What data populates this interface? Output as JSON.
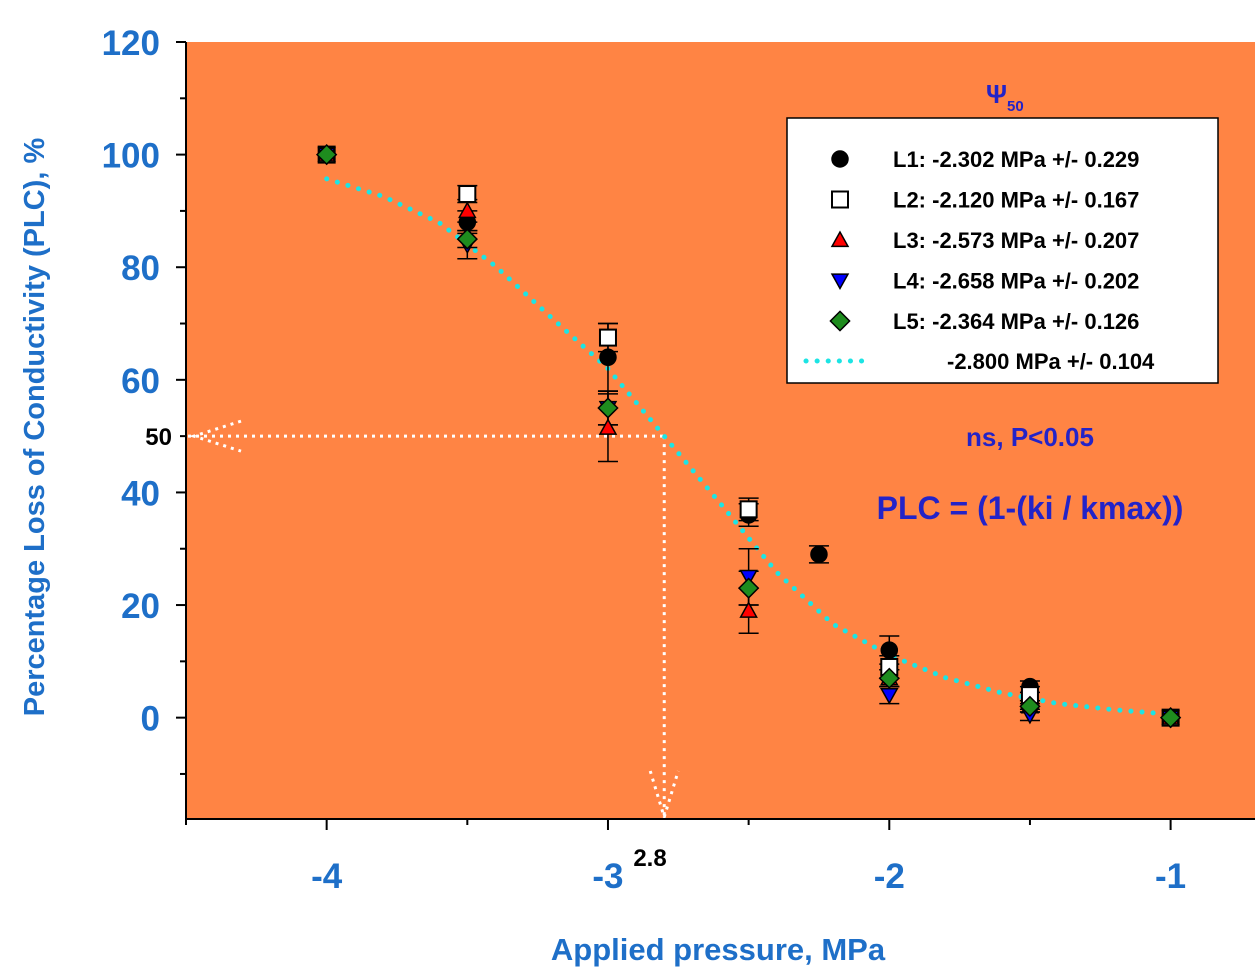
{
  "colors": {
    "plot_background": "#FF8444",
    "axis_text": "#1E6FC8",
    "annotation_text": "#2323C8",
    "fit_line": "#1CE4E4",
    "guide_line": "#FFFFFF"
  },
  "chart_data": {
    "type": "scatter",
    "title": "",
    "xlabel": "Applied pressure, MPa",
    "ylabel": "Percentage Loss of Conductivity (PLC), %",
    "xlim": [
      -4.5,
      -0.7
    ],
    "ylim": [
      -18,
      120
    ],
    "xticks": [
      -4,
      -3,
      -2,
      -1
    ],
    "xtick_labels": [
      "-4",
      "-3",
      "-2",
      "-1"
    ],
    "yticks": [
      0,
      20,
      40,
      60,
      80,
      100,
      120
    ],
    "ytick_labels": [
      "0",
      "20",
      "40",
      "60",
      "80",
      "100",
      "120"
    ],
    "grid": false,
    "legend_position": "top-right",
    "psi_symbol": "Ψ",
    "psi_subscript": "50",
    "series": [
      {
        "name": "L1: -2.302 MPa +/- 0.229",
        "marker": "circle",
        "color": "#000000",
        "points": [
          {
            "x": -4,
            "y": 100
          },
          {
            "x": -3.5,
            "y": 88,
            "err": 2
          },
          {
            "x": -3,
            "y": 64,
            "err": 6
          },
          {
            "x": -2.5,
            "y": 36,
            "err": 2
          },
          {
            "x": -2.25,
            "y": 29,
            "err": 1.5
          },
          {
            "x": -2,
            "y": 12,
            "err": 2.5
          },
          {
            "x": -1.5,
            "y": 5.5,
            "err": 1
          },
          {
            "x": -1,
            "y": 0
          }
        ]
      },
      {
        "name": "L2: -2.120 MPa +/- 0.167",
        "marker": "square-open",
        "color": "#FFFFFF",
        "points": [
          {
            "x": -4,
            "y": 100
          },
          {
            "x": -3.5,
            "y": 93,
            "err": 1.5
          },
          {
            "x": -3,
            "y": 67.5,
            "err": 2.5
          },
          {
            "x": -2.5,
            "y": 37,
            "err": 2
          },
          {
            "x": -2,
            "y": 9,
            "err": 2
          },
          {
            "x": -1.5,
            "y": 4,
            "err": 1.5
          },
          {
            "x": -1,
            "y": 0
          }
        ]
      },
      {
        "name": "L3: -2.573 MPa +/- 0.207",
        "marker": "triangle-up",
        "color": "#FF0000",
        "points": [
          {
            "x": -4,
            "y": 100
          },
          {
            "x": -3.5,
            "y": 90,
            "err": 2
          },
          {
            "x": -3,
            "y": 51.5,
            "err": 6
          },
          {
            "x": -2.5,
            "y": 19,
            "err": 4
          },
          {
            "x": -2,
            "y": 7,
            "err": 1.5
          },
          {
            "x": -1.5,
            "y": 2,
            "err": 1
          },
          {
            "x": -1,
            "y": 0
          }
        ]
      },
      {
        "name": "L4: -2.658 MPa +/- 0.202",
        "marker": "triangle-down",
        "color": "#0000FF",
        "points": [
          {
            "x": -4,
            "y": 100
          },
          {
            "x": -3.5,
            "y": 84,
            "err": 2.5
          },
          {
            "x": -3,
            "y": 55,
            "err": 3
          },
          {
            "x": -2.5,
            "y": 25,
            "err": 5
          },
          {
            "x": -2,
            "y": 4,
            "err": 1.5
          },
          {
            "x": -1.5,
            "y": 0.5,
            "err": 1
          },
          {
            "x": -1,
            "y": 0
          }
        ]
      },
      {
        "name": "L5: -2.364 MPa +/- 0.126",
        "marker": "diamond",
        "color": "#1E8C1E",
        "points": [
          {
            "x": -4,
            "y": 100
          },
          {
            "x": -3.5,
            "y": 85,
            "err": 1.5
          },
          {
            "x": -3,
            "y": 55,
            "err": 3
          },
          {
            "x": -2.5,
            "y": 23,
            "err": 3
          },
          {
            "x": -2,
            "y": 7,
            "err": 1.5
          },
          {
            "x": -1.5,
            "y": 2,
            "err": 1
          },
          {
            "x": -1,
            "y": 0
          }
        ]
      }
    ],
    "fit": {
      "label": "-2.800 MPa +/- 0.104",
      "style": "dotted",
      "x": [
        -4,
        -3.8,
        -3.6,
        -3.4,
        -3.2,
        -3.0,
        -2.8,
        -2.6,
        -2.4,
        -2.2,
        -2.0,
        -1.8,
        -1.6,
        -1.4,
        -1.2,
        -1.0
      ],
      "y": [
        95.7,
        92.6,
        87.9,
        80.2,
        71.0,
        62.0,
        50.0,
        38.0,
        25.8,
        16.6,
        11.1,
        7.1,
        4.4,
        2.5,
        1.4,
        0.6
      ]
    },
    "guide_lines": {
      "x": -2.8,
      "y": 50
    },
    "annotations": {
      "y50_label": "50",
      "x28_label": "2.8",
      "significance": "ns, P<0.05",
      "equation": "PLC = (1-(ki / kmax))"
    }
  }
}
